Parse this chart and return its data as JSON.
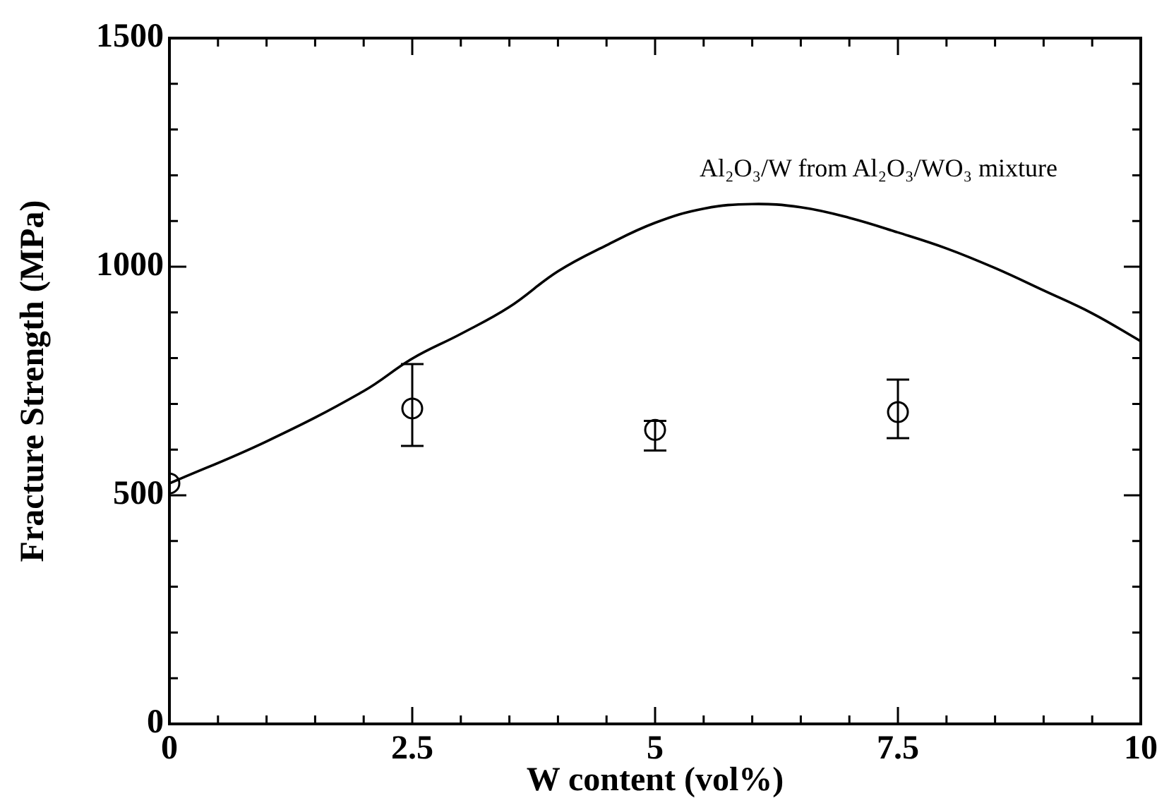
{
  "chart_data": {
    "type": "scatter",
    "xlabel": "W content (vol%)",
    "ylabel": "Fracture Strength (MPa)",
    "xlim": [
      0,
      10
    ],
    "xticks": [
      0,
      {
        "value": 0.5,
        "label": null
      },
      {
        "value": 1,
        "label": null
      },
      {
        "value": 1.5,
        "label": null
      },
      {
        "value": 2,
        "label": null
      },
      2.5,
      {
        "value": 3,
        "label": null
      },
      {
        "value": 3.5,
        "label": null
      },
      {
        "value": 4,
        "label": null
      },
      {
        "value": 4.5,
        "label": null
      },
      5,
      {
        "value": 5.5,
        "label": null
      },
      {
        "value": 6,
        "label": null
      },
      {
        "value": 6.5,
        "label": null
      },
      {
        "value": 7,
        "label": null
      },
      7.5,
      {
        "value": 8,
        "label": null
      },
      {
        "value": 8.5,
        "label": null
      },
      {
        "value": 9,
        "label": null
      },
      {
        "value": 9.5,
        "label": null
      },
      10
    ],
    "ylim": [
      0,
      1500
    ],
    "yticks": [
      0,
      {
        "value": 100,
        "label": null
      },
      {
        "value": 200,
        "label": null
      },
      {
        "value": 300,
        "label": null
      },
      {
        "value": 400,
        "label": null
      },
      500,
      {
        "value": 600,
        "label": null
      },
      {
        "value": 700,
        "label": null
      },
      {
        "value": 800,
        "label": null
      },
      {
        "value": 900,
        "label": null
      },
      1000,
      {
        "value": 1100,
        "label": null
      },
      {
        "value": 1200,
        "label": null
      },
      {
        "value": 1300,
        "label": null
      },
      {
        "value": 1400,
        "label": null
      },
      1500
    ],
    "grid": false,
    "legend": false,
    "series": [
      {
        "type": "line",
        "color": "#000000",
        "marker": "none",
        "line_style": "solid",
        "x": [
          0,
          1,
          2,
          2.5,
          3,
          3.5,
          4,
          4.5,
          5,
          5.5,
          6,
          6.5,
          7,
          7.5,
          8,
          8.5,
          9,
          9.5,
          10
        ],
        "values": [
          526,
          618,
          728,
          799,
          853,
          912,
          990,
          1047,
          1096,
          1127,
          1137,
          1130,
          1107,
          1075,
          1040,
          997,
          948,
          898,
          837
        ]
      },
      {
        "type": "scatter",
        "color": "#000000",
        "marker": "circle",
        "x": [
          0,
          2.5,
          5,
          7.5
        ],
        "values": [
          526,
          690,
          643,
          682
        ],
        "errors": [
          null,
          [
            608,
            787
          ],
          [
            598,
            663
          ],
          [
            625,
            753
          ]
        ]
      }
    ],
    "annotations": [
      "Al₂O₃/W from Al₂O₃/WO₃ mixture"
    ]
  }
}
